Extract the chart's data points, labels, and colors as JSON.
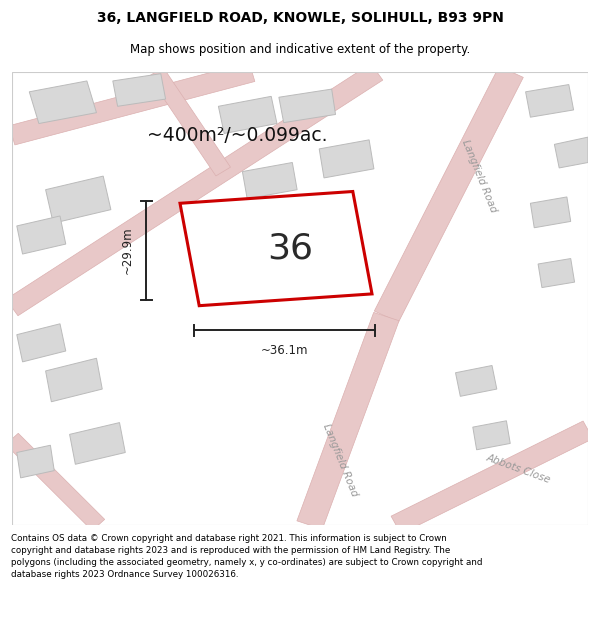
{
  "title_line1": "36, LANGFIELD ROAD, KNOWLE, SOLIHULL, B93 9PN",
  "title_line2": "Map shows position and indicative extent of the property.",
  "footer_text": "Contains OS data © Crown copyright and database right 2021. This information is subject to Crown copyright and database rights 2023 and is reproduced with the permission of HM Land Registry. The polygons (including the associated geometry, namely x, y co-ordinates) are subject to Crown copyright and database rights 2023 Ordnance Survey 100026316.",
  "area_label": "~400m²/~0.099ac.",
  "number_label": "36",
  "width_label": "~36.1m",
  "height_label": "~29.9m",
  "bg_color": "#efefef",
  "road_color": "#e8c8c8",
  "road_edge": "#dbb0b0",
  "building_color": "#d8d8d8",
  "building_edge": "#bbbbbb",
  "plot_color_red": "#cc0000",
  "road_label_color": "#999999",
  "dim_color": "#222222",
  "title_fontsize": 10,
  "subtitle_fontsize": 8.5,
  "footer_fontsize": 6.3
}
